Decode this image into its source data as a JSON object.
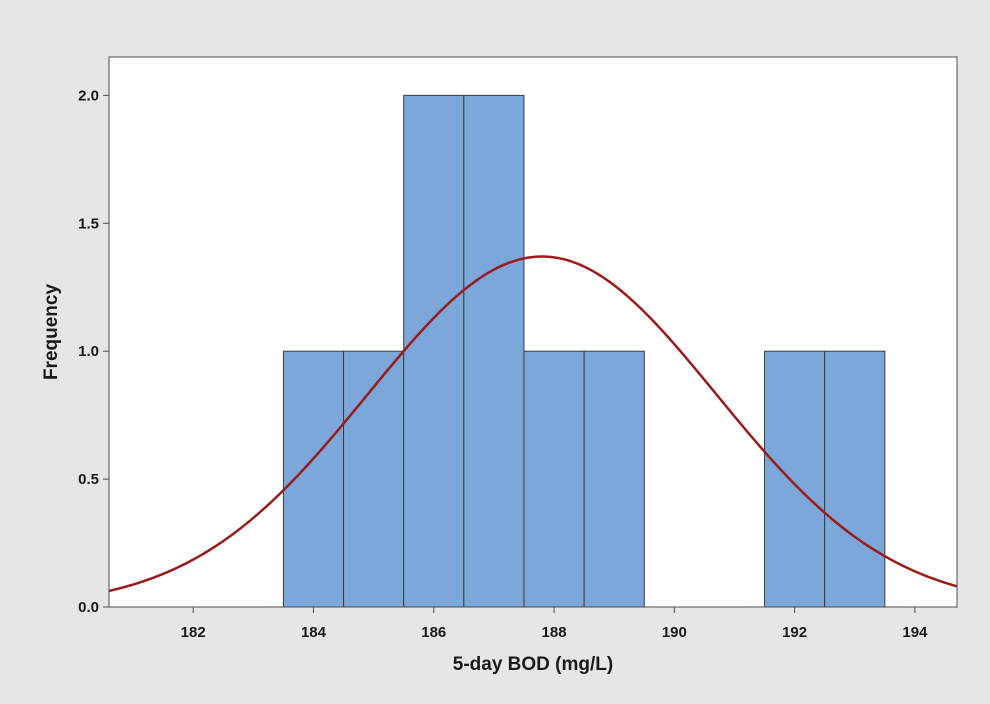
{
  "chart_data": {
    "type": "bar",
    "subtype": "histogram-with-normal-fit",
    "title": "",
    "xlabel": "5-day BOD (mg/L)",
    "ylabel": "Frequency",
    "xlim": [
      180.6,
      194.7
    ],
    "ylim": [
      0,
      2.15
    ],
    "x_ticks": [
      182,
      184,
      186,
      188,
      190,
      192,
      194
    ],
    "x_tick_labels": [
      "182",
      "184",
      "186",
      "188",
      "190",
      "192",
      "194"
    ],
    "y_ticks": [
      0,
      0.5,
      1.0,
      1.5,
      2.0
    ],
    "y_tick_labels": [
      "0.0",
      "0.5",
      "1.0",
      "1.5",
      "2.0"
    ],
    "bin_width": 1,
    "bins": [
      {
        "x": 184,
        "count": 1
      },
      {
        "x": 185,
        "count": 1
      },
      {
        "x": 186,
        "count": 2
      },
      {
        "x": 187,
        "count": 2
      },
      {
        "x": 188,
        "count": 1
      },
      {
        "x": 189,
        "count": 1
      },
      {
        "x": 190,
        "count": 0
      },
      {
        "x": 191,
        "count": 0
      },
      {
        "x": 192,
        "count": 1
      },
      {
        "x": 193,
        "count": 1
      }
    ],
    "fit": {
      "distribution": "normal",
      "mean": 187.8,
      "stdev": 2.9,
      "peak": 1.37
    },
    "grid": false,
    "colors": {
      "background": "#e6e6e6",
      "plot_background": "#ffffff",
      "bar_fill": "#7ba7da",
      "bar_stroke": "#3c3c3c",
      "fit_line": "#9b1b1b",
      "axis": "#4d4d4d"
    }
  }
}
